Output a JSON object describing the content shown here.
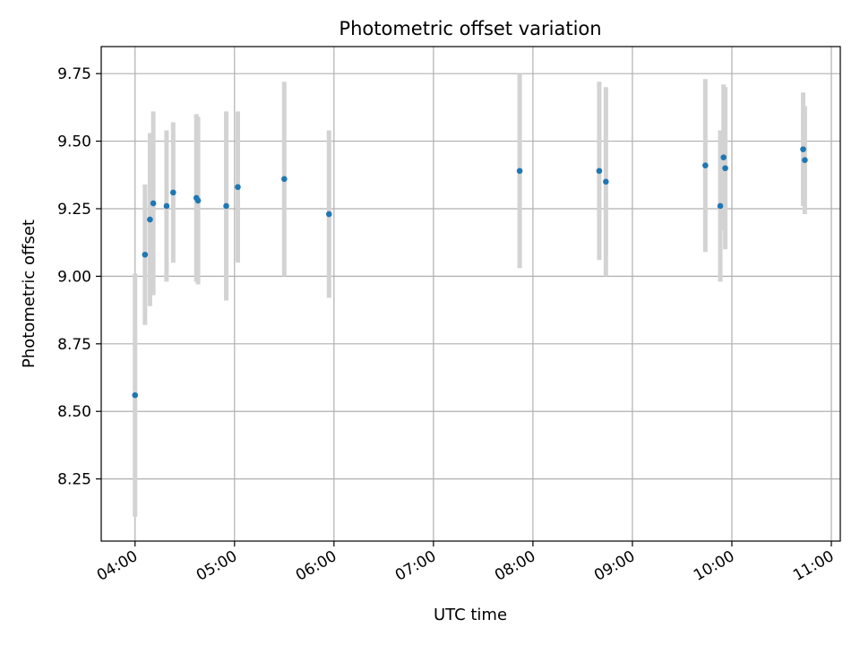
{
  "chart_data": {
    "type": "scatter",
    "title": "Photometric offset variation",
    "xlabel": "UTC time",
    "ylabel": "Photometric offset",
    "x_tick_labels": [
      "04:00",
      "05:00",
      "06:00",
      "07:00",
      "08:00",
      "09:00",
      "10:00",
      "11:00"
    ],
    "x_ticks_minutes": [
      240,
      300,
      360,
      420,
      480,
      540,
      600,
      660
    ],
    "xlim_minutes": [
      219.6,
      665.4
    ],
    "y_ticks": [
      8.25,
      8.5,
      8.75,
      9.0,
      9.25,
      9.5,
      9.75
    ],
    "ylim": [
      8.02,
      9.85
    ],
    "grid": true,
    "colors": {
      "marker": "#1f77b4",
      "errorbar": "#d3d3d3",
      "grid": "#b0b0b0"
    },
    "points": [
      {
        "time": "04:00",
        "y": 8.56,
        "err": 0.45
      },
      {
        "time": "04:06",
        "y": 9.08,
        "err": 0.26
      },
      {
        "time": "04:09",
        "y": 9.21,
        "err": 0.32
      },
      {
        "time": "04:11",
        "y": 9.27,
        "err": 0.34
      },
      {
        "time": "04:19",
        "y": 9.26,
        "err": 0.28
      },
      {
        "time": "04:23",
        "y": 9.31,
        "err": 0.26
      },
      {
        "time": "04:37",
        "y": 9.29,
        "err": 0.31
      },
      {
        "time": "04:38",
        "y": 9.28,
        "err": 0.31
      },
      {
        "time": "04:55",
        "y": 9.26,
        "err": 0.35
      },
      {
        "time": "05:02",
        "y": 9.33,
        "err": 0.28
      },
      {
        "time": "05:30",
        "y": 9.36,
        "err": 0.36
      },
      {
        "time": "05:57",
        "y": 9.23,
        "err": 0.31
      },
      {
        "time": "07:52",
        "y": 9.39,
        "err": 0.36
      },
      {
        "time": "08:40",
        "y": 9.39,
        "err": 0.33
      },
      {
        "time": "08:44",
        "y": 9.35,
        "err": 0.35
      },
      {
        "time": "09:44",
        "y": 9.41,
        "err": 0.32
      },
      {
        "time": "09:53",
        "y": 9.26,
        "err": 0.28
      },
      {
        "time": "09:55",
        "y": 9.44,
        "err": 0.27
      },
      {
        "time": "09:56",
        "y": 9.4,
        "err": 0.3
      },
      {
        "time": "10:43",
        "y": 9.47,
        "err": 0.21
      },
      {
        "time": "10:44",
        "y": 9.43,
        "err": 0.2
      }
    ]
  }
}
